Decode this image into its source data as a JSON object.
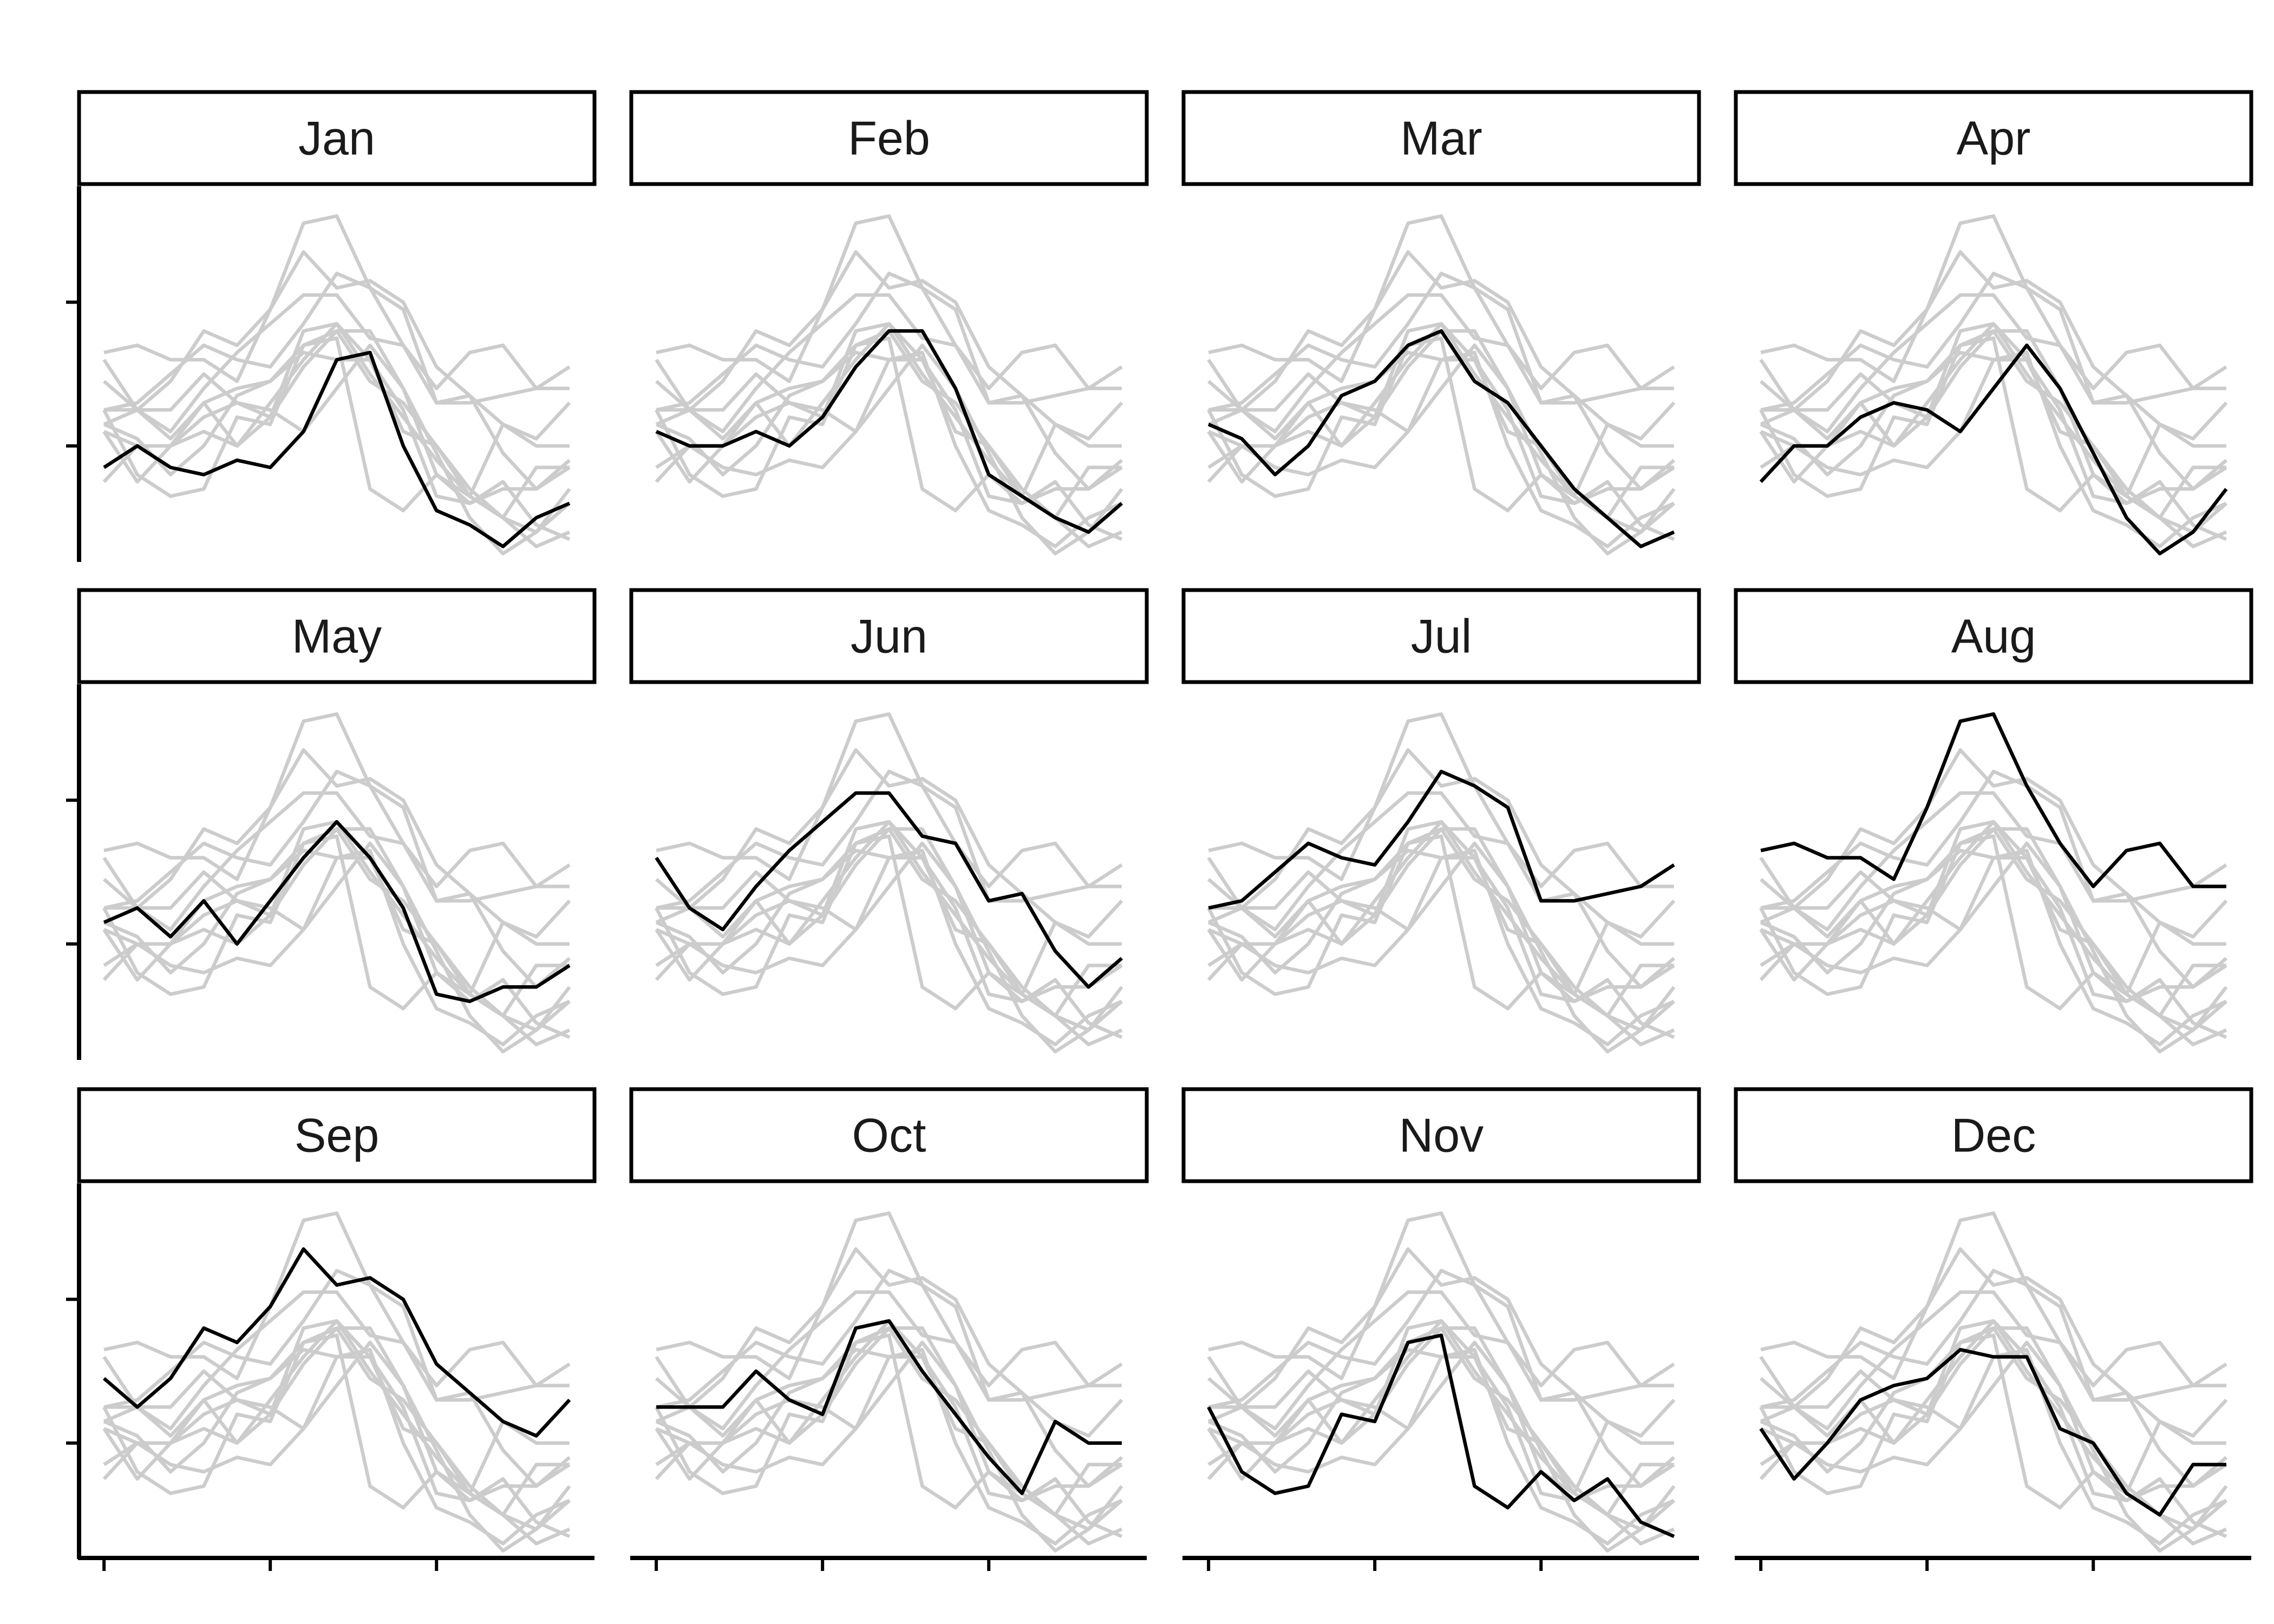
{
  "chart_data": {
    "type": "line",
    "facet_by": "month",
    "facets": [
      "Jan",
      "Feb",
      "Mar",
      "Apr",
      "May",
      "Jun",
      "Jul",
      "Aug",
      "Sep",
      "Oct",
      "Nov",
      "Dec"
    ],
    "layout": {
      "rows": 3,
      "cols": 4
    },
    "x": [
      1,
      2,
      3,
      4,
      5,
      6,
      7,
      8,
      9,
      10,
      11,
      12,
      13,
      14,
      15
    ],
    "xlim": [
      0.9,
      15.1
    ],
    "ylim": [
      0,
      2.6
    ],
    "y_ticks": [
      0.8,
      1.8
    ],
    "x_ticks": [
      1,
      6,
      11
    ],
    "title": "",
    "xlabel": "",
    "ylabel": "",
    "grid": false,
    "colors": {
      "highlight": "#000000",
      "context": "#cccccc"
    },
    "series": [
      {
        "values": [
          0.65,
          0.8,
          0.65,
          0.6,
          0.7,
          0.65,
          0.9,
          1.4,
          1.45,
          0.8,
          0.35,
          0.25,
          0.1,
          0.3,
          0.4
        ]
      },
      {
        "values": [
          0.9,
          0.8,
          0.8,
          0.9,
          0.8,
          1.0,
          1.35,
          1.6,
          1.6,
          1.2,
          0.6,
          0.45,
          0.3,
          0.2,
          0.4
        ]
      },
      {
        "values": [
          0.95,
          0.85,
          0.6,
          0.8,
          1.15,
          1.25,
          1.5,
          1.6,
          1.25,
          1.1,
          0.8,
          0.5,
          0.3,
          0.1,
          0.2
        ]
      },
      {
        "values": [
          0.55,
          0.8,
          0.8,
          1.0,
          1.1,
          1.05,
          0.9,
          1.2,
          1.5,
          1.2,
          0.75,
          0.3,
          0.05,
          0.2,
          0.5
        ]
      },
      {
        "values": [
          0.95,
          1.05,
          0.85,
          1.1,
          0.8,
          1.1,
          1.4,
          1.65,
          1.4,
          1.05,
          0.45,
          0.4,
          0.5,
          0.5,
          0.65
        ]
      },
      {
        "values": [
          1.4,
          1.05,
          0.9,
          1.2,
          1.45,
          1.65,
          1.85,
          1.85,
          1.55,
          1.5,
          1.1,
          1.15,
          0.75,
          0.5,
          0.7
        ]
      },
      {
        "values": [
          1.05,
          1.1,
          1.3,
          1.5,
          1.4,
          1.35,
          1.65,
          2.0,
          1.9,
          1.75,
          1.1,
          1.1,
          1.15,
          1.2,
          1.35
        ]
      },
      {
        "values": [
          1.45,
          1.5,
          1.4,
          1.4,
          1.25,
          1.75,
          2.35,
          2.4,
          1.9,
          1.5,
          1.2,
          1.45,
          1.5,
          1.2,
          1.2
        ]
      },
      {
        "values": [
          1.25,
          1.05,
          1.25,
          1.6,
          1.5,
          1.75,
          2.15,
          1.9,
          1.95,
          1.8,
          1.35,
          1.15,
          0.95,
          0.85,
          1.1
        ]
      },
      {
        "values": [
          1.05,
          1.05,
          1.05,
          1.3,
          1.1,
          1.0,
          1.6,
          1.65,
          1.3,
          1.0,
          0.7,
          0.45,
          0.95,
          0.8,
          0.8
        ]
      },
      {
        "values": [
          1.05,
          0.6,
          0.45,
          0.5,
          1.0,
          0.95,
          1.5,
          1.55,
          0.5,
          0.35,
          0.6,
          0.4,
          0.55,
          0.25,
          0.15
        ]
      },
      {
        "values": [
          0.9,
          0.55,
          0.8,
          1.1,
          1.2,
          1.25,
          1.45,
          1.4,
          1.4,
          0.9,
          0.8,
          0.45,
          0.3,
          0.65,
          0.65
        ]
      }
    ]
  }
}
